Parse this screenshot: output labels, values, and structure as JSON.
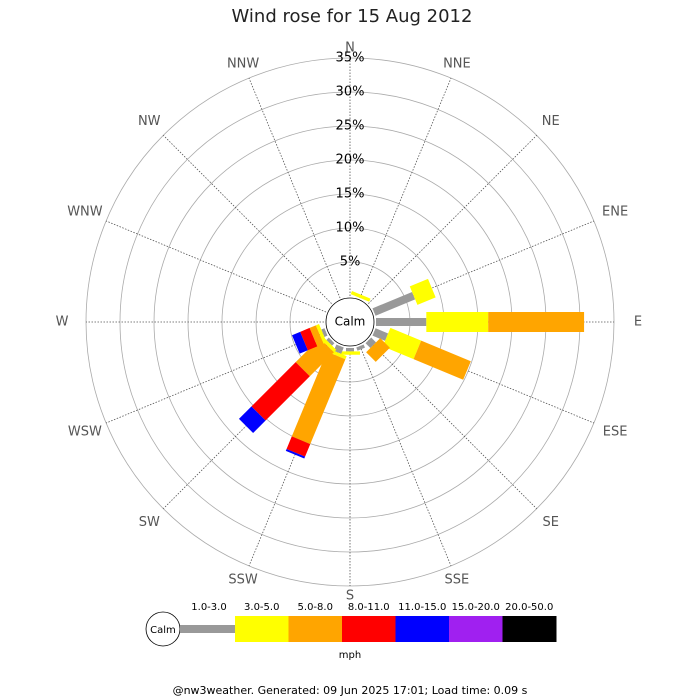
{
  "chart_data": {
    "type": "windrose",
    "title": "Wind rose for 15 Aug 2012",
    "categories": [
      "N",
      "NNE",
      "NE",
      "ENE",
      "E",
      "ESE",
      "SE",
      "SSE",
      "S",
      "SSW",
      "SW",
      "WSW",
      "W",
      "WNW",
      "NW",
      "NNW"
    ],
    "series": [
      {
        "name": "1.0-3.0",
        "color": "#999999",
        "values": [
          0,
          0,
          0,
          6.3,
          7.4,
          2,
          1,
          0.5,
          0.5,
          1,
          0.5,
          0.5,
          0,
          0,
          0,
          0
        ]
      },
      {
        "name": "3.0-5.0",
        "color": "#ffff00",
        "values": [
          0,
          0.5,
          0,
          2.9,
          9.1,
          4.9,
          0,
          0,
          0.5,
          0.5,
          0.5,
          0.5,
          0,
          0,
          0,
          0
        ]
      },
      {
        "name": "5.0-8.0",
        "color": "#ffa500",
        "values": [
          0,
          0,
          0,
          0,
          14.1,
          7.9,
          2,
          0,
          0,
          13.5,
          5,
          1,
          0,
          0,
          0,
          0
        ]
      },
      {
        "name": "8.0-11.0",
        "color": "#ff0000",
        "values": [
          0,
          0,
          0,
          0,
          0,
          0,
          0,
          0,
          0,
          2,
          9.2,
          1.5,
          0,
          0,
          0,
          0
        ]
      },
      {
        "name": "11.0-15.0",
        "color": "#0000ff",
        "values": [
          0,
          0,
          0,
          0,
          0,
          0,
          0,
          0,
          0,
          0.3,
          2.6,
          1.3,
          0,
          0,
          0,
          0
        ]
      },
      {
        "name": "15.0-20.0",
        "color": "#a020f0",
        "values": [
          0,
          0,
          0,
          0,
          0,
          0,
          0,
          0,
          0,
          0,
          0,
          0,
          0,
          0,
          0,
          0
        ]
      },
      {
        "name": "20.0-50.0",
        "color": "#000000",
        "values": [
          0,
          0,
          0,
          0,
          0,
          0,
          0,
          0,
          0,
          0,
          0,
          0,
          0,
          0,
          0,
          0
        ]
      }
    ],
    "ylim": [
      0,
      35
    ],
    "yticks": [
      {
        "value": 5,
        "label": "5%"
      },
      {
        "value": 10,
        "label": "10%"
      },
      {
        "value": 15,
        "label": "15%"
      },
      {
        "value": 20,
        "label": "20%"
      },
      {
        "value": 25,
        "label": "25%"
      },
      {
        "value": 30,
        "label": "30%"
      },
      {
        "value": 35,
        "label": "35%"
      }
    ],
    "calm_label": "Calm",
    "units": "mph",
    "footer": "@nw3weather. Generated: 09 Jun 2025 17:01; Load time: 0.09 s"
  }
}
